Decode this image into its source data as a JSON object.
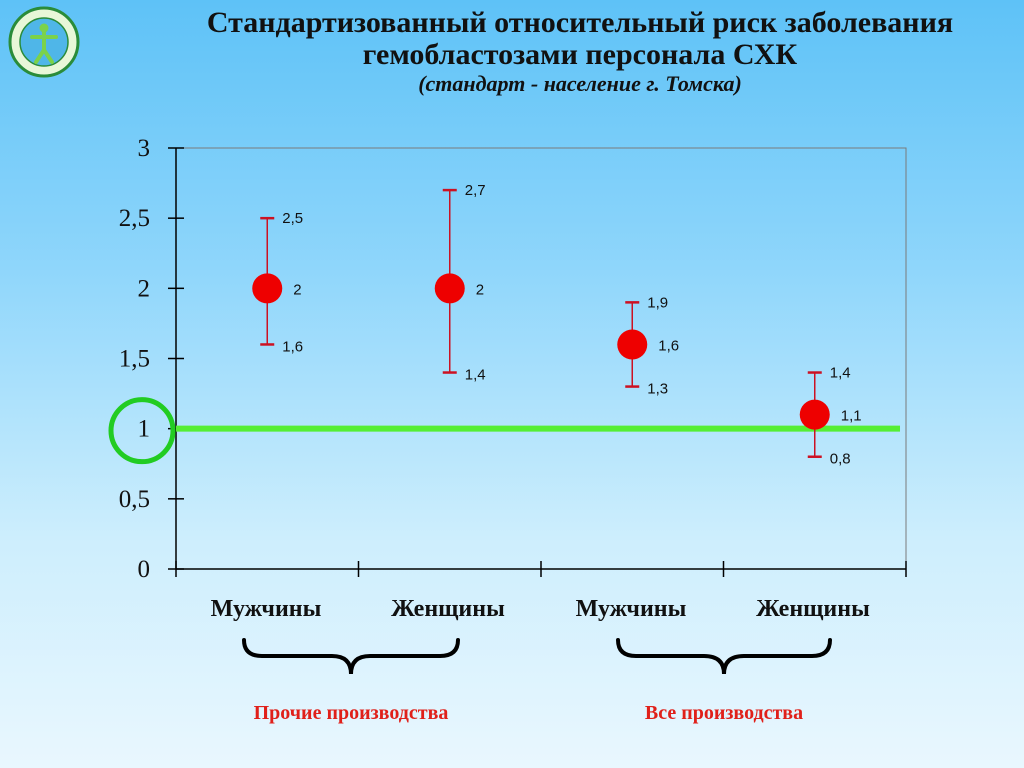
{
  "slide": {
    "title_line1": "Стандартизованный относительный риск заболевания",
    "title_line2": "гемобластозами персонала СХК",
    "subtitle": "(стандарт - население г. Томска)"
  },
  "groups": [
    "Прочие производства",
    "Все производства"
  ],
  "colors": {
    "point": "#ee0000",
    "error_bar": "#cc1122",
    "reference_line": "#55ee33",
    "highlight_circle": "#22cc22",
    "group_label": "#e0201a"
  },
  "chart_data": {
    "type": "scatter",
    "categories": [
      "Мужчины",
      "Женщины",
      "Мужчины",
      "Женщины"
    ],
    "values": [
      2,
      2,
      1.6,
      1.1
    ],
    "value_labels": [
      "2",
      "2",
      "1,6",
      "1,1"
    ],
    "lower": [
      1.6,
      1.4,
      1.3,
      0.8
    ],
    "lower_labels": [
      "1,6",
      "1,4",
      "1,3",
      "0,8"
    ],
    "upper": [
      2.5,
      2.7,
      1.9,
      1.4
    ],
    "upper_labels": [
      "2,5",
      "2,7",
      "1,9",
      "1,4"
    ],
    "y_ticks": [
      0,
      0.5,
      1,
      1.5,
      2,
      2.5,
      3
    ],
    "y_tick_labels": [
      "0",
      "0,5",
      "1",
      "1,5",
      "2",
      "2,5",
      "3"
    ],
    "ylim": [
      0,
      3
    ],
    "reference_line": 1,
    "grid": false
  }
}
